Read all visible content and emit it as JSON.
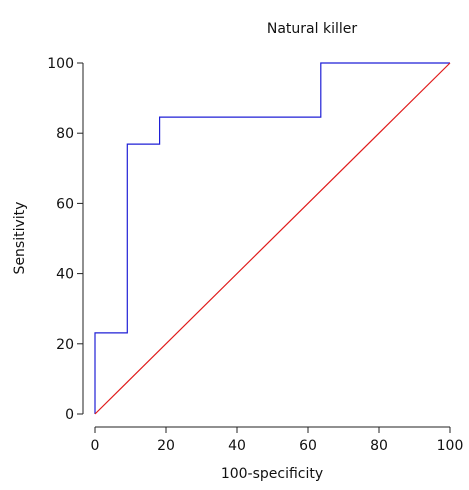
{
  "chart_data": {
    "type": "line",
    "title": "Natural killer",
    "xlabel": "100-specificity",
    "ylabel": "Sensitivity",
    "xlim": [
      0,
      100
    ],
    "ylim": [
      0,
      100
    ],
    "xticks": [
      0,
      20,
      40,
      60,
      80,
      100
    ],
    "yticks": [
      0,
      20,
      40,
      60,
      80,
      100
    ],
    "x_tick_labels": [
      "0",
      "20",
      "40",
      "60",
      "80",
      "100"
    ],
    "y_tick_labels": [
      "0",
      "20",
      "40",
      "60",
      "80",
      "100"
    ],
    "grid": false,
    "series": [
      {
        "color": "#1f1fd6",
        "step": true,
        "x": [
          0,
          0,
          9.1,
          9.1,
          18.2,
          18.2,
          63.6,
          63.6,
          100
        ],
        "y": [
          0,
          23.1,
          23.1,
          76.9,
          76.9,
          84.6,
          84.6,
          100,
          100
        ]
      },
      {
        "color": "#e01b1b",
        "x": [
          0,
          100
        ],
        "y": [
          0,
          100
        ]
      }
    ]
  }
}
